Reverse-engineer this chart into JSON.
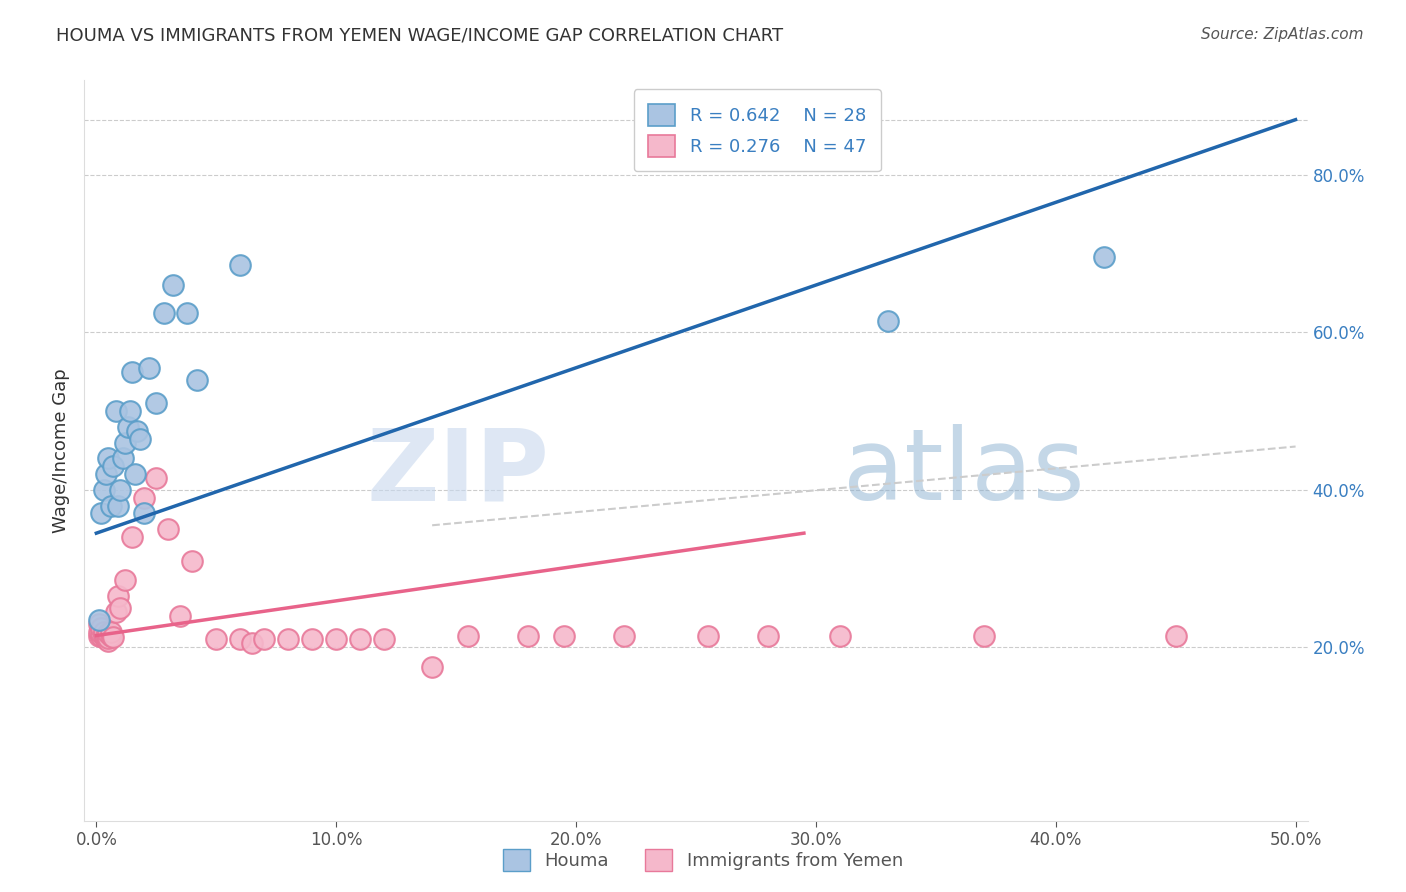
{
  "title": "HOUMA VS IMMIGRANTS FROM YEMEN WAGE/INCOME GAP CORRELATION CHART",
  "source": "Source: ZipAtlas.com",
  "ylabel": "Wage/Income Gap",
  "xlim": [
    -0.005,
    0.505
  ],
  "ylim": [
    -0.02,
    0.92
  ],
  "xtick_labels": [
    "0.0%",
    "",
    "",
    "",
    "",
    "",
    "",
    "",
    "",
    "",
    "10.0%",
    "",
    "",
    "",
    "",
    "",
    "",
    "",
    "",
    "",
    "20.0%",
    "",
    "",
    "",
    "",
    "",
    "",
    "",
    "",
    "",
    "30.0%",
    "",
    "",
    "",
    "",
    "",
    "",
    "",
    "",
    "",
    "40.0%",
    "",
    "",
    "",
    "",
    "",
    "",
    "",
    "",
    "",
    "50.0%"
  ],
  "xtick_vals": [
    0.0,
    0.01,
    0.02,
    0.03,
    0.04,
    0.05,
    0.06,
    0.07,
    0.08,
    0.09,
    0.1,
    0.11,
    0.12,
    0.13,
    0.14,
    0.15,
    0.16,
    0.17,
    0.18,
    0.19,
    0.2,
    0.21,
    0.22,
    0.23,
    0.24,
    0.25,
    0.26,
    0.27,
    0.28,
    0.29,
    0.3,
    0.31,
    0.32,
    0.33,
    0.34,
    0.35,
    0.36,
    0.37,
    0.38,
    0.39,
    0.4,
    0.41,
    0.42,
    0.43,
    0.44,
    0.45,
    0.46,
    0.47,
    0.48,
    0.49,
    0.5
  ],
  "xtick_major_labels": [
    "0.0%",
    "10.0%",
    "20.0%",
    "30.0%",
    "40.0%",
    "50.0%"
  ],
  "xtick_major_vals": [
    0.0,
    0.1,
    0.2,
    0.3,
    0.4,
    0.5
  ],
  "ytick_labels_right": [
    "20.0%",
    "40.0%",
    "60.0%",
    "80.0%"
  ],
  "ytick_vals_right": [
    0.2,
    0.4,
    0.6,
    0.8
  ],
  "houma_color": "#aac4e2",
  "houma_edge": "#5b9ec9",
  "yemen_color": "#f5b8cb",
  "yemen_edge": "#e8799a",
  "blue_line_color": "#2166ac",
  "pink_line_color": "#e8638a",
  "dashed_line_color": "#cccccc",
  "legend_R1": "R = 0.642",
  "legend_N1": "N = 28",
  "legend_R2": "R = 0.276",
  "legend_N2": "N = 47",
  "legend_label1": "Houma",
  "legend_label2": "Immigrants from Yemen",
  "watermark": "ZIPatlas",
  "blue_line_x0": 0.0,
  "blue_line_y0": 0.345,
  "blue_line_x1": 0.5,
  "blue_line_y1": 0.87,
  "pink_line_x0": 0.0,
  "pink_line_y0": 0.215,
  "pink_line_x1": 0.295,
  "pink_line_y1": 0.345,
  "dashed_line_x0": 0.14,
  "dashed_line_y0": 0.355,
  "dashed_line_x1": 0.5,
  "dashed_line_y1": 0.455,
  "houma_x": [
    0.001,
    0.002,
    0.003,
    0.004,
    0.005,
    0.006,
    0.007,
    0.008,
    0.009,
    0.01,
    0.011,
    0.012,
    0.013,
    0.014,
    0.015,
    0.016,
    0.017,
    0.018,
    0.02,
    0.022,
    0.025,
    0.028,
    0.032,
    0.038,
    0.042,
    0.06,
    0.33,
    0.42
  ],
  "houma_y": [
    0.235,
    0.37,
    0.4,
    0.42,
    0.44,
    0.38,
    0.43,
    0.5,
    0.38,
    0.4,
    0.44,
    0.46,
    0.48,
    0.5,
    0.55,
    0.42,
    0.475,
    0.465,
    0.37,
    0.555,
    0.51,
    0.625,
    0.66,
    0.625,
    0.54,
    0.685,
    0.615,
    0.695
  ],
  "yemen_x": [
    0.001,
    0.001,
    0.001,
    0.002,
    0.002,
    0.002,
    0.003,
    0.003,
    0.003,
    0.004,
    0.004,
    0.005,
    0.005,
    0.005,
    0.005,
    0.006,
    0.006,
    0.007,
    0.008,
    0.009,
    0.01,
    0.012,
    0.015,
    0.02,
    0.025,
    0.03,
    0.035,
    0.04,
    0.05,
    0.06,
    0.065,
    0.07,
    0.08,
    0.09,
    0.1,
    0.11,
    0.12,
    0.14,
    0.155,
    0.18,
    0.195,
    0.22,
    0.255,
    0.28,
    0.31,
    0.37,
    0.45
  ],
  "yemen_y": [
    0.215,
    0.22,
    0.23,
    0.215,
    0.218,
    0.225,
    0.215,
    0.218,
    0.22,
    0.21,
    0.215,
    0.208,
    0.215,
    0.212,
    0.218,
    0.215,
    0.22,
    0.213,
    0.245,
    0.265,
    0.25,
    0.285,
    0.34,
    0.39,
    0.415,
    0.35,
    0.24,
    0.31,
    0.21,
    0.21,
    0.205,
    0.21,
    0.21,
    0.21,
    0.21,
    0.21,
    0.21,
    0.175,
    0.215,
    0.215,
    0.215,
    0.215,
    0.215,
    0.215,
    0.215,
    0.215,
    0.215
  ]
}
